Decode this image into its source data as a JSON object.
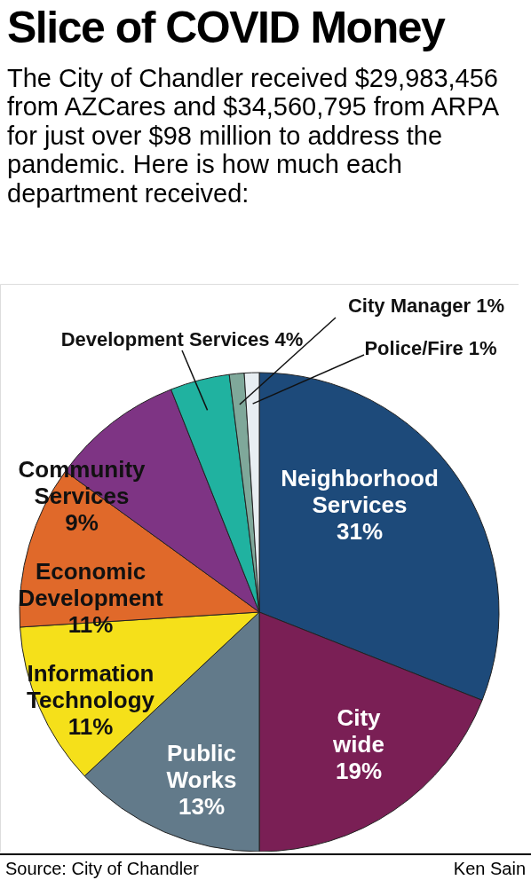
{
  "chart_data": {
    "type": "pie",
    "title": "Slice of COVID Money",
    "subtitle": "The City of Chandler received $29,983,456 from AZCares and $34,560,795 from ARPA for just over $98 million to address the pandemic. Here is how much each department received:",
    "categories": [
      "Neighborhood Services",
      "City wide",
      "Public Works",
      "Information Technology",
      "Economic Development",
      "Community Services",
      "Development Services",
      "City Manager",
      "Police/Fire"
    ],
    "values": [
      31,
      19,
      13,
      11,
      11,
      9,
      4,
      1,
      1
    ],
    "colors": [
      "#1d4a7a",
      "#7a1f55",
      "#627a8a",
      "#f5e01a",
      "#e0692a",
      "#7e3484",
      "#20b2a0",
      "#7fa89a",
      "#e8eef2"
    ],
    "value_labels": [
      "31%",
      "19%",
      "13%",
      "11%",
      "11%",
      "9%",
      "4%",
      "1%",
      "1%"
    ],
    "annotations": [
      "Source: City of Chandler",
      "Ken Sain"
    ]
  }
}
